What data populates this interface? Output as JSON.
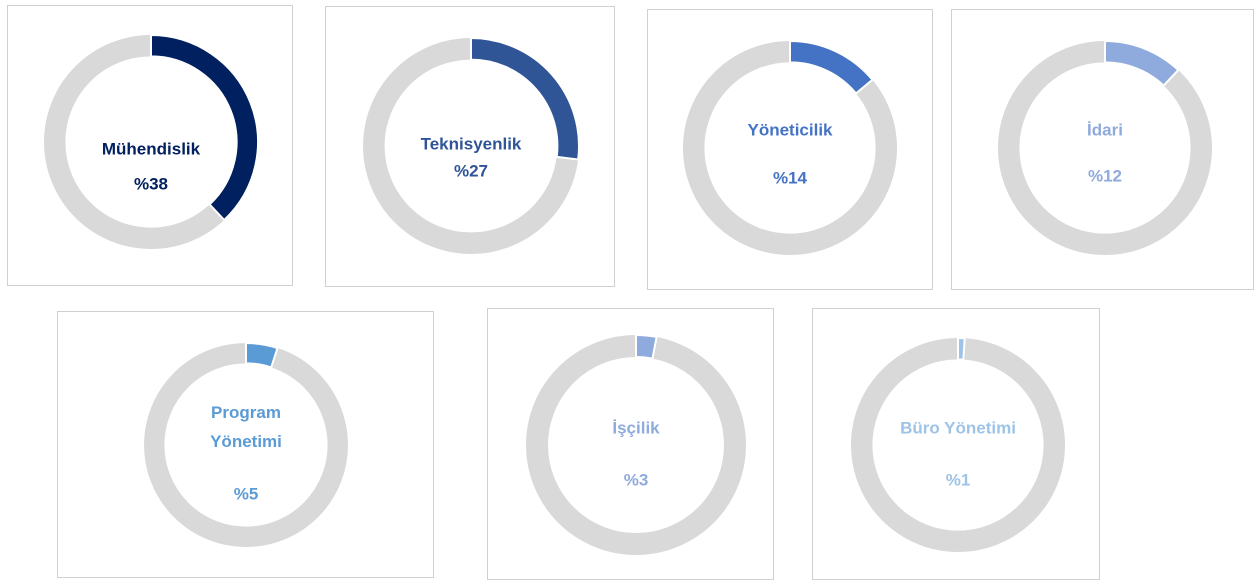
{
  "chart_data": [
    {
      "type": "donut",
      "title": "Mühendislik",
      "values": [
        38
      ],
      "value_labels": [
        "%38"
      ],
      "color": "#002060"
    },
    {
      "type": "donut",
      "title": "Teknisyenlik",
      "values": [
        27
      ],
      "value_labels": [
        "%27"
      ],
      "color": "#2f5597"
    },
    {
      "type": "donut",
      "title": "Yöneticilik",
      "values": [
        14
      ],
      "value_labels": [
        "%14"
      ],
      "color": "#4472c4"
    },
    {
      "type": "donut",
      "title": "İdari",
      "values": [
        12
      ],
      "value_labels": [
        "%12"
      ],
      "color": "#8faadc"
    },
    {
      "type": "donut",
      "title": "Program Yönetimi",
      "values": [
        5
      ],
      "value_labels": [
        "%5"
      ],
      "color": "#5b9bd5"
    },
    {
      "type": "donut",
      "title": "İşçilik",
      "values": [
        3
      ],
      "value_labels": [
        "%3"
      ],
      "color": "#8faadc"
    },
    {
      "type": "donut",
      "title": "Büro Yönetimi",
      "values": [
        1
      ],
      "value_labels": [
        "%1"
      ],
      "color": "#9dc3e6"
    }
  ]
}
